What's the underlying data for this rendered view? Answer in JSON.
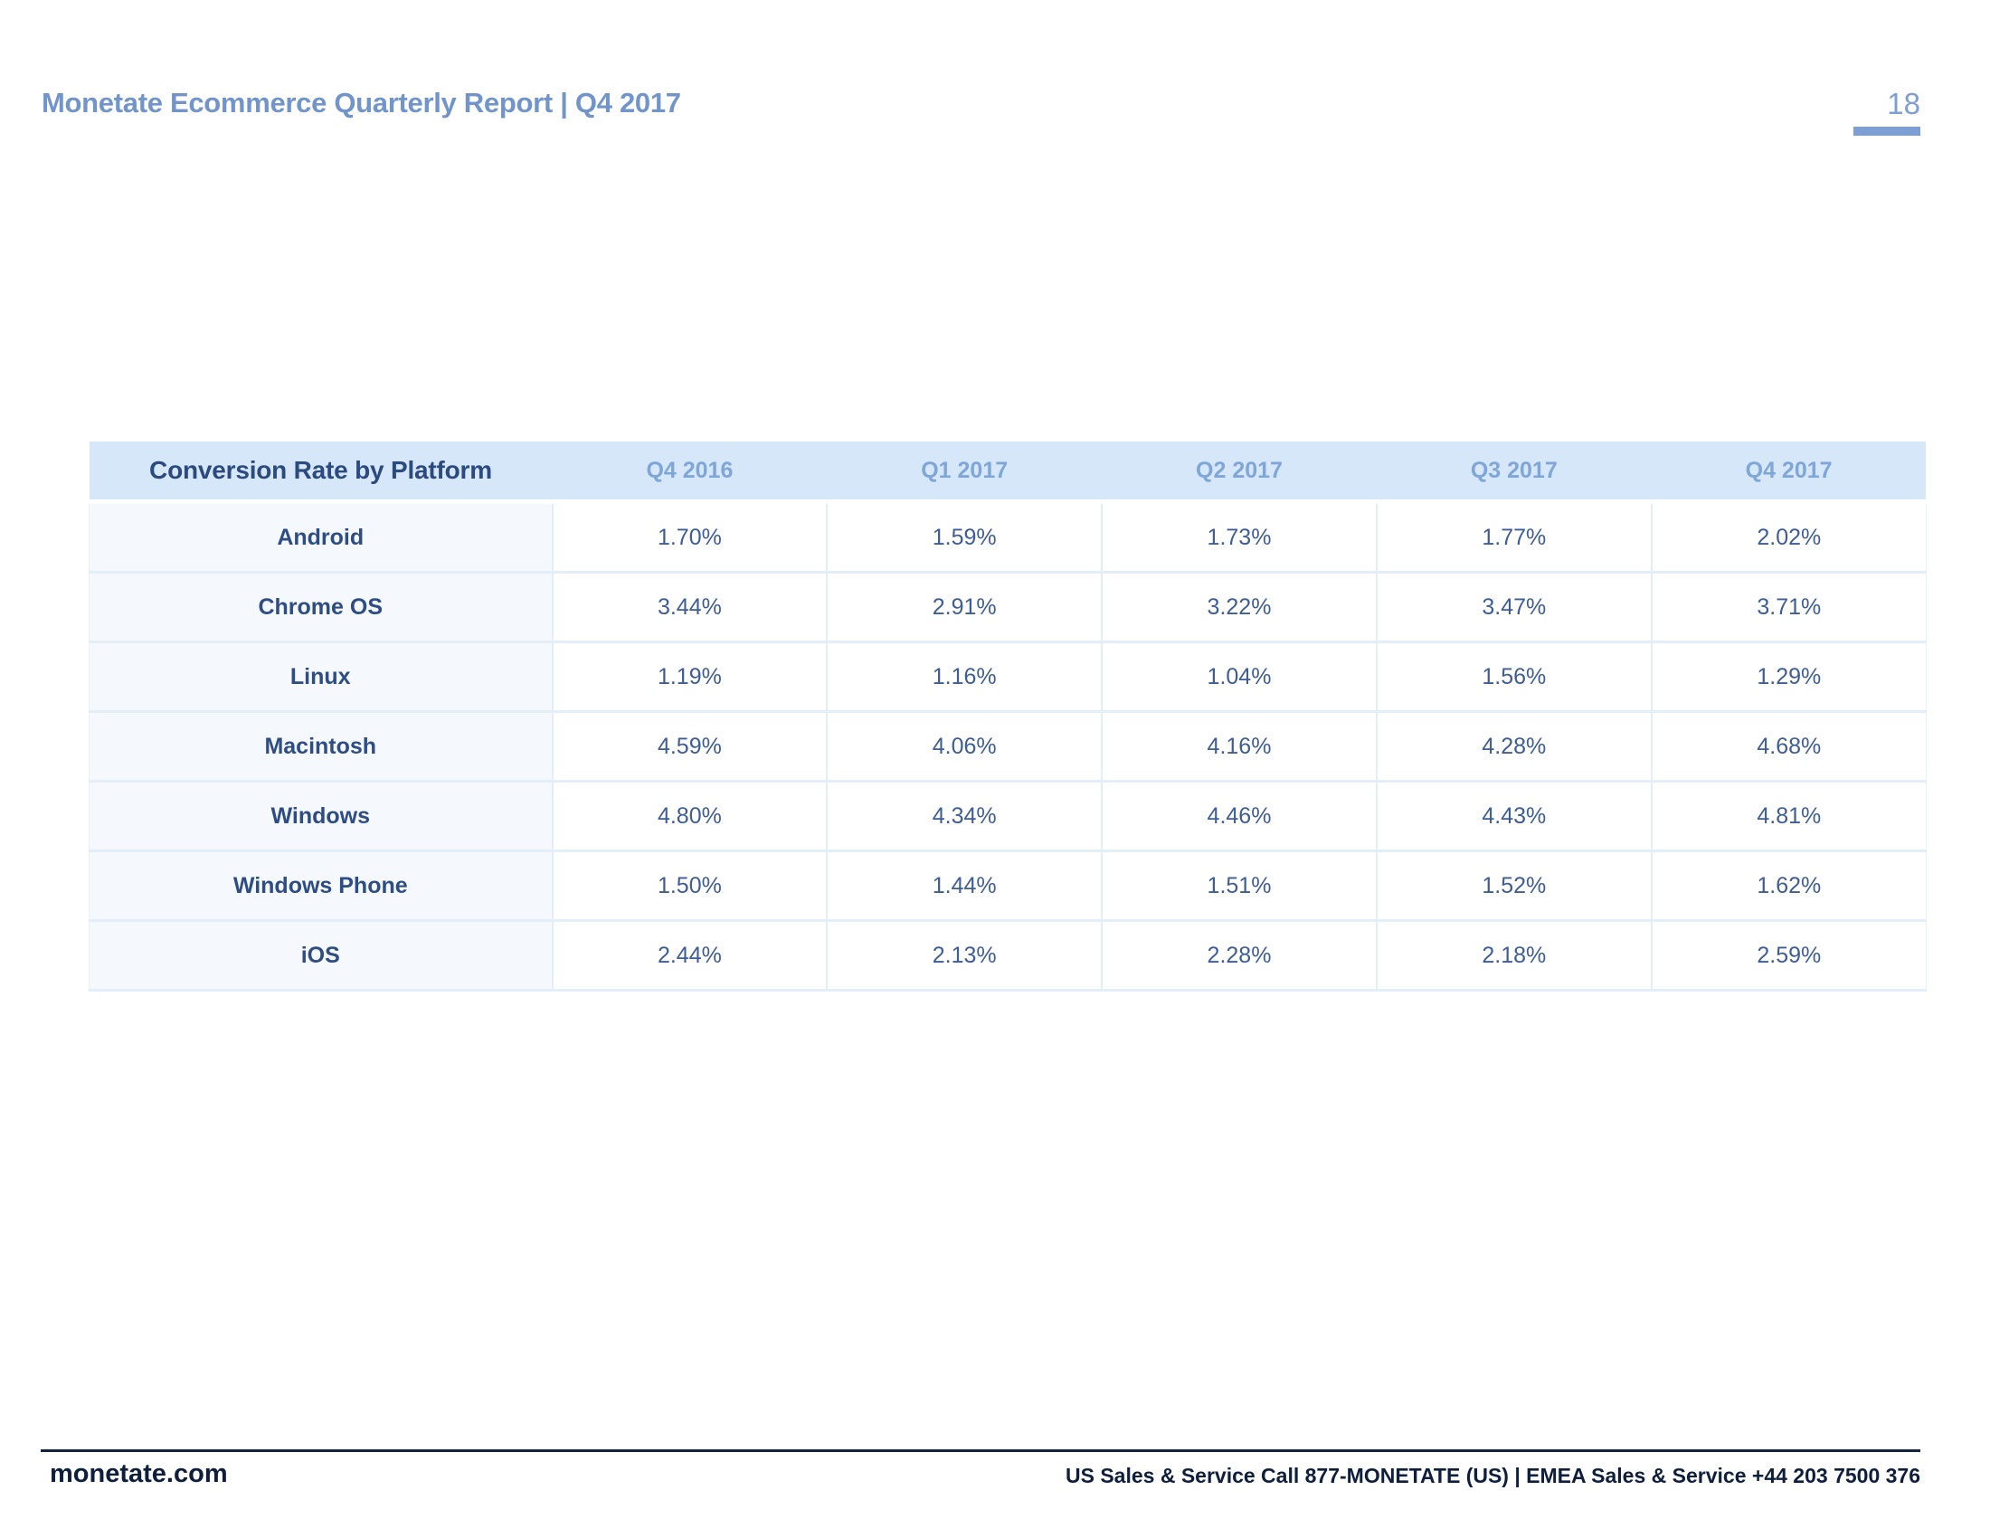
{
  "header": {
    "title": "Monetate Ecommerce Quarterly Report | Q4 2017",
    "page_number": "18"
  },
  "footer": {
    "brand": "monetate.com",
    "contact": "US Sales & Service Call 877-MONETATE (US) | EMEA Sales & Service +44 203 7500 376"
  },
  "colors": {
    "header_title_blue": "#7195cb",
    "page_number_blue": "#7d9fd3",
    "table_header_bg": "#d7e7fa",
    "table_title_navy": "#2b4a80",
    "column_header_blue": "#7ea6d8",
    "platform_col_bg": "#f5f9fd",
    "platform_name_navy": "#2e4d85",
    "value_blue": "#3e5d97",
    "cell_border_blue": "#e3eef9",
    "footer_navy": "#0e1f3d"
  },
  "chart_data": {
    "type": "table",
    "title": "Conversion Rate by Platform",
    "columns": [
      "Q4 2016",
      "Q1 2017",
      "Q2 2017",
      "Q3 2017",
      "Q4 2017"
    ],
    "rows": [
      {
        "platform": "Android",
        "values": [
          "1.70%",
          "1.59%",
          "1.73%",
          "1.77%",
          "2.02%"
        ]
      },
      {
        "platform": "Chrome OS",
        "values": [
          "3.44%",
          "2.91%",
          "3.22%",
          "3.47%",
          "3.71%"
        ]
      },
      {
        "platform": "Linux",
        "values": [
          "1.19%",
          "1.16%",
          "1.04%",
          "1.56%",
          "1.29%"
        ]
      },
      {
        "platform": "Macintosh",
        "values": [
          "4.59%",
          "4.06%",
          "4.16%",
          "4.28%",
          "4.68%"
        ]
      },
      {
        "platform": "Windows",
        "values": [
          "4.80%",
          "4.34%",
          "4.46%",
          "4.43%",
          "4.81%"
        ]
      },
      {
        "platform": "Windows Phone",
        "values": [
          "1.50%",
          "1.44%",
          "1.51%",
          "1.52%",
          "1.62%"
        ]
      },
      {
        "platform": "iOS",
        "values": [
          "2.44%",
          "2.13%",
          "2.28%",
          "2.18%",
          "2.59%"
        ]
      }
    ]
  }
}
